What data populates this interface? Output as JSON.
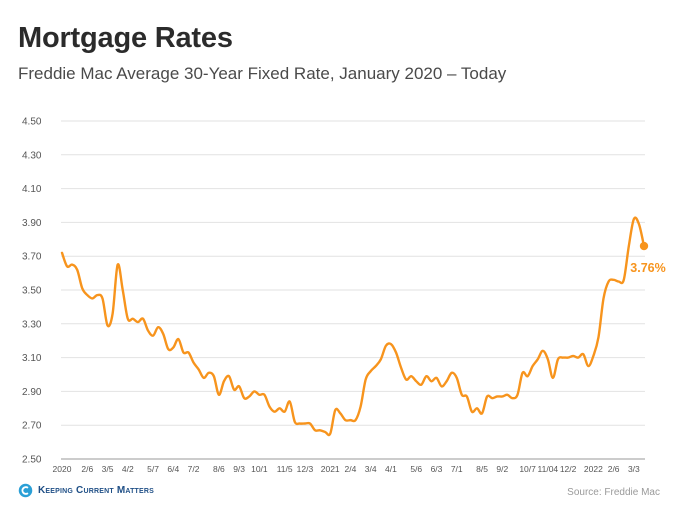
{
  "header": {
    "title": "Mortgage Rates",
    "subtitle": "Freddie Mac Average 30-Year Fixed Rate, January 2020 – Today"
  },
  "footer": {
    "brand": "Keeping Current Matters",
    "source": "Source: Freddie Mac"
  },
  "chart_data": {
    "type": "line",
    "title": "Mortgage Rates",
    "subtitle": "Freddie Mac Average 30-Year Fixed Rate, January 2020 – Today",
    "xlabel": "",
    "ylabel": "",
    "ylim": [
      2.5,
      4.5
    ],
    "yticks": [
      "4.50",
      "4.30",
      "4.10",
      "3.90",
      "3.70",
      "3.50",
      "3.30",
      "3.10",
      "2.90",
      "2.70",
      "2.50"
    ],
    "grid": true,
    "line_color": "#f7941d",
    "xtick_labels": [
      "2020",
      "2/6",
      "3/5",
      "4/2",
      "5/7",
      "6/4",
      "7/2",
      "8/6",
      "9/3",
      "10/1",
      "11/5",
      "12/3",
      "2021",
      "2/4",
      "3/4",
      "4/1",
      "5/6",
      "6/3",
      "7/1",
      "8/5",
      "9/2",
      "10/7",
      "11/04",
      "12/2",
      "2022",
      "2/6",
      "3/3"
    ],
    "xtick_positions": [
      0,
      5,
      9,
      13,
      18,
      22,
      26,
      31,
      35,
      39,
      44,
      48,
      53,
      57,
      61,
      65,
      70,
      74,
      78,
      83,
      87,
      92,
      96,
      100,
      105,
      109,
      113
    ],
    "series": [
      {
        "values": [
          3.72,
          3.64,
          3.65,
          3.62,
          3.51,
          3.47,
          3.45,
          3.47,
          3.45,
          3.29,
          3.36,
          3.65,
          3.5,
          3.33,
          3.33,
          3.31,
          3.33,
          3.26,
          3.23,
          3.28,
          3.24,
          3.15,
          3.16,
          3.21,
          3.13,
          3.13,
          3.07,
          3.03,
          2.98,
          3.01,
          2.99,
          2.88,
          2.96,
          2.99,
          2.91,
          2.93,
          2.86,
          2.87,
          2.9,
          2.88,
          2.88,
          2.81,
          2.78,
          2.8,
          2.78,
          2.84,
          2.72,
          2.71,
          2.71,
          2.71,
          2.67,
          2.67,
          2.66,
          2.65,
          2.79,
          2.77,
          2.73,
          2.73,
          2.73,
          2.81,
          2.97,
          3.02,
          3.05,
          3.09,
          3.17,
          3.18,
          3.13,
          3.04,
          2.97,
          2.99,
          2.96,
          2.94,
          2.99,
          2.96,
          2.98,
          2.93,
          2.96,
          3.01,
          2.98,
          2.88,
          2.87,
          2.78,
          2.8,
          2.77,
          2.87,
          2.86,
          2.87,
          2.87,
          2.88,
          2.86,
          2.88,
          3.01,
          2.99,
          3.05,
          3.09,
          3.14,
          3.09,
          2.98,
          3.09,
          3.1,
          3.1,
          3.11,
          3.1,
          3.12,
          3.05,
          3.11,
          3.22,
          3.45,
          3.55,
          3.56,
          3.55,
          3.56,
          3.76,
          3.92,
          3.89,
          3.76
        ],
        "last_value_label": "3.76%"
      }
    ]
  }
}
